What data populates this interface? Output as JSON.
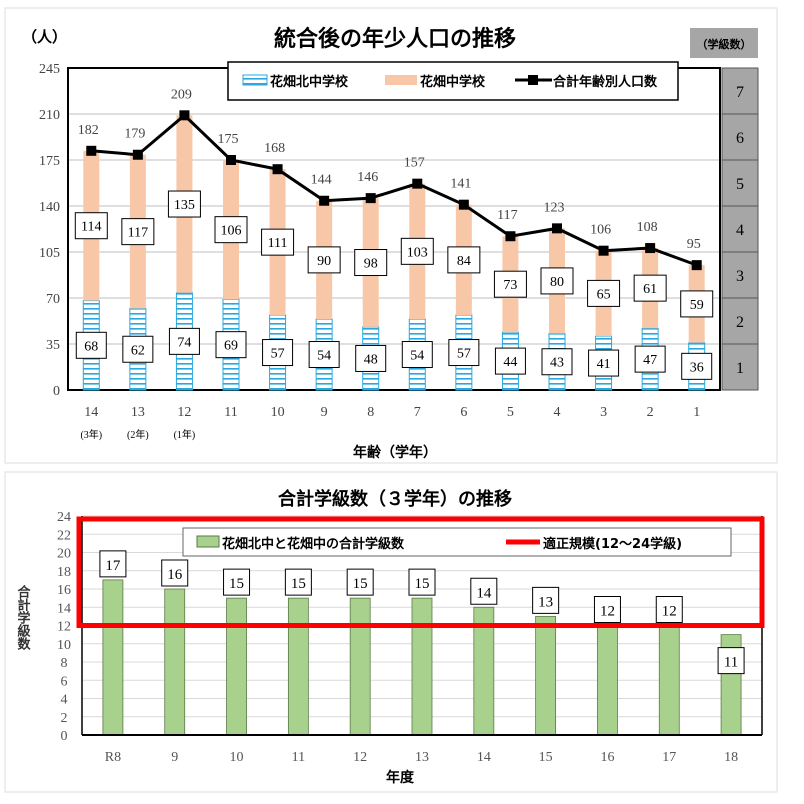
{
  "chart_data": [
    {
      "type": "bar",
      "stacked": true,
      "title": "統合後の年少人口の推移",
      "ylabel": "（人）",
      "xlabel": "年齢（学年）",
      "ylim": [
        0,
        245
      ],
      "yticks": [
        0,
        35,
        70,
        105,
        140,
        175,
        210,
        245
      ],
      "categories": [
        "14",
        "13",
        "12",
        "11",
        "10",
        "9",
        "8",
        "7",
        "6",
        "5",
        "4",
        "3",
        "2",
        "1"
      ],
      "category_sublabels": [
        "(3年)",
        "(2年)",
        "(1年)",
        "",
        "",
        "",
        "",
        "",
        "",
        "",
        "",
        "",
        "",
        ""
      ],
      "grid": true,
      "legend_placement": "top",
      "series": [
        {
          "name": "花畑北中学校",
          "kind": "bar",
          "color": "#29a8e0",
          "values": [
            68,
            62,
            74,
            69,
            57,
            54,
            48,
            54,
            57,
            44,
            43,
            41,
            47,
            36
          ]
        },
        {
          "name": "花畑中学校",
          "kind": "bar",
          "color": "#f8c7a8",
          "values": [
            114,
            117,
            135,
            106,
            111,
            90,
            98,
            103,
            84,
            73,
            80,
            65,
            61,
            59
          ]
        },
        {
          "name": "合計年齢別人口数",
          "kind": "line",
          "color": "#000000",
          "values": [
            182,
            179,
            209,
            175,
            168,
            144,
            146,
            157,
            141,
            117,
            123,
            106,
            108,
            95
          ]
        }
      ],
      "secondary_axis": {
        "label": "（学級数）",
        "ticks": [
          "1",
          "2",
          "3",
          "4",
          "5",
          "6",
          "7"
        ],
        "color": "#a6a6a6"
      }
    },
    {
      "type": "bar",
      "title": "合計学級数（３学年）の推移",
      "ylabel": "合計学級数",
      "xlabel": "年度",
      "ylim": [
        0,
        24
      ],
      "yticks": [
        0,
        2,
        4,
        6,
        8,
        10,
        12,
        14,
        16,
        18,
        20,
        22,
        24
      ],
      "categories": [
        "R8",
        "9",
        "10",
        "11",
        "12",
        "13",
        "14",
        "15",
        "16",
        "17",
        "18"
      ],
      "grid": true,
      "legend_placement": "top",
      "series": [
        {
          "name": "花畑北中と花畑中の合計学級数",
          "color": "#a9d18e",
          "values": [
            17,
            16,
            15,
            15,
            15,
            15,
            14,
            13,
            12,
            12,
            11
          ]
        }
      ],
      "band": {
        "name": "適正規模(12～24学級)",
        "range": [
          12,
          24
        ],
        "color": "#ff0000"
      }
    }
  ]
}
